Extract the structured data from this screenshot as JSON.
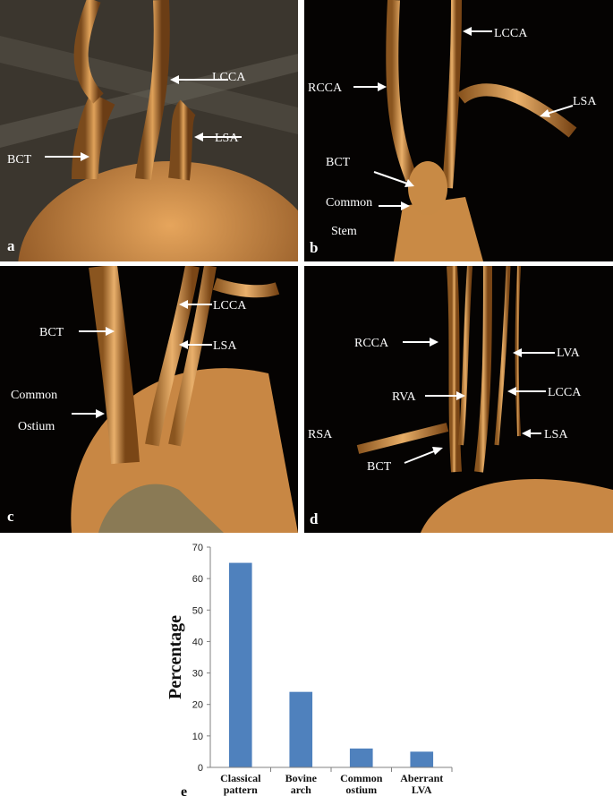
{
  "panels": {
    "a": {
      "letter": "a",
      "labels": [
        "LCCA",
        "LSA",
        "BCT"
      ]
    },
    "b": {
      "letter": "b",
      "labels": [
        "LCCA",
        "RCCA",
        "LSA",
        "BCT",
        "Common",
        "Stem"
      ]
    },
    "c": {
      "letter": "c",
      "labels": [
        "LCCA",
        "BCT",
        "LSA",
        "Common",
        "Ostium"
      ]
    },
    "d": {
      "letter": "d",
      "labels": [
        "RCCA",
        "LVA",
        "RVA",
        "LCCA",
        "RSA",
        "LSA",
        "BCT"
      ]
    }
  },
  "chart_data": {
    "type": "bar",
    "panel_letter": "e",
    "categories": [
      [
        "Classical",
        "pattern"
      ],
      [
        "Bovine",
        "arch"
      ],
      [
        "Common",
        "ostium"
      ],
      [
        "Aberrant",
        "LVA"
      ]
    ],
    "values": [
      65,
      24,
      6,
      5
    ],
    "ylabel": "Percentage",
    "ylim": [
      0,
      70
    ],
    "yticks": [
      0,
      10,
      20,
      30,
      40,
      50,
      60,
      70
    ],
    "bar_color": "#4f81bd",
    "grid": false
  }
}
